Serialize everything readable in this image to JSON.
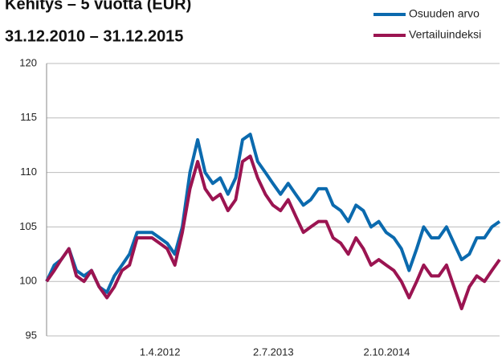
{
  "chart_data": {
    "type": "line",
    "title": "Kehitys – 5 vuotta (EUR)",
    "subtitle": "31.12.2010 – 31.12.2015",
    "x": [
      "2010-12-31",
      "2011-01-31",
      "2011-02-28",
      "2011-03-31",
      "2011-04-30",
      "2011-05-31",
      "2011-06-30",
      "2011-07-31",
      "2011-08-31",
      "2011-09-30",
      "2011-10-31",
      "2011-11-30",
      "2011-12-31",
      "2012-01-31",
      "2012-02-29",
      "2012-03-31",
      "2012-04-30",
      "2012-05-31",
      "2012-06-30",
      "2012-07-31",
      "2012-08-31",
      "2012-09-30",
      "2012-10-31",
      "2012-11-30",
      "2012-12-31",
      "2013-01-31",
      "2013-02-28",
      "2013-03-31",
      "2013-04-30",
      "2013-05-31",
      "2013-06-30",
      "2013-07-31",
      "2013-08-31",
      "2013-09-30",
      "2013-10-31",
      "2013-11-30",
      "2013-12-31",
      "2014-01-31",
      "2014-02-28",
      "2014-03-31",
      "2014-04-30",
      "2014-05-31",
      "2014-06-30",
      "2014-07-31",
      "2014-08-31",
      "2014-09-30",
      "2014-10-31",
      "2014-11-30",
      "2014-12-31",
      "2015-01-31",
      "2015-02-28",
      "2015-03-31",
      "2015-04-30",
      "2015-05-31",
      "2015-06-30",
      "2015-07-31",
      "2015-08-31",
      "2015-09-30",
      "2015-10-31",
      "2015-11-30",
      "2015-12-31"
    ],
    "series": [
      {
        "name": "Osuuden arvo",
        "color": "#0b6aae",
        "values": [
          100,
          101.5,
          102,
          103,
          101,
          100.5,
          101,
          99.5,
          99,
          100.5,
          101.5,
          102.5,
          104.5,
          104.5,
          104.5,
          104,
          103.5,
          102.5,
          105,
          110,
          113,
          110,
          109,
          109.5,
          108,
          109.5,
          113,
          113.5,
          111,
          110,
          109,
          108,
          109,
          108,
          107,
          107.5,
          108.5,
          108.5,
          107,
          106.5,
          105.5,
          107,
          106.5,
          105,
          105.5,
          104.5,
          104,
          103,
          101,
          103,
          105,
          104,
          104,
          105,
          103.5,
          102,
          102.5,
          104,
          104,
          105,
          105.5
        ]
      },
      {
        "name": "Vertailuindeksi",
        "color": "#9b1451",
        "values": [
          100,
          101,
          102,
          103,
          100.5,
          100,
          101,
          99.5,
          98.5,
          99.5,
          101,
          101.5,
          104,
          104,
          104,
          103.5,
          103,
          101.5,
          104.5,
          108.5,
          111,
          108.5,
          107.5,
          108,
          106.5,
          107.5,
          111,
          111.5,
          109.5,
          108,
          107,
          106.5,
          107.5,
          106,
          104.5,
          105,
          105.5,
          105.5,
          104,
          103.5,
          102.5,
          104,
          103,
          101.5,
          102,
          101.5,
          101,
          100,
          98.5,
          100,
          101.5,
          100.5,
          100.5,
          101.5,
          99.5,
          97.5,
          99.5,
          100.5,
          100,
          101,
          102
        ]
      }
    ],
    "xlim": [
      "2010-12-31",
      "2015-12-31"
    ],
    "xticks": [
      {
        "value": "2012-04-01",
        "label": "1.4.2012"
      },
      {
        "value": "2013-07-02",
        "label": "2.7.2013"
      },
      {
        "value": "2014-10-02",
        "label": "2.10.2014"
      }
    ],
    "ylim": [
      95,
      120
    ],
    "yticks": [
      95,
      100,
      105,
      110,
      115,
      120
    ],
    "grid": true,
    "legend": "top-right"
  }
}
